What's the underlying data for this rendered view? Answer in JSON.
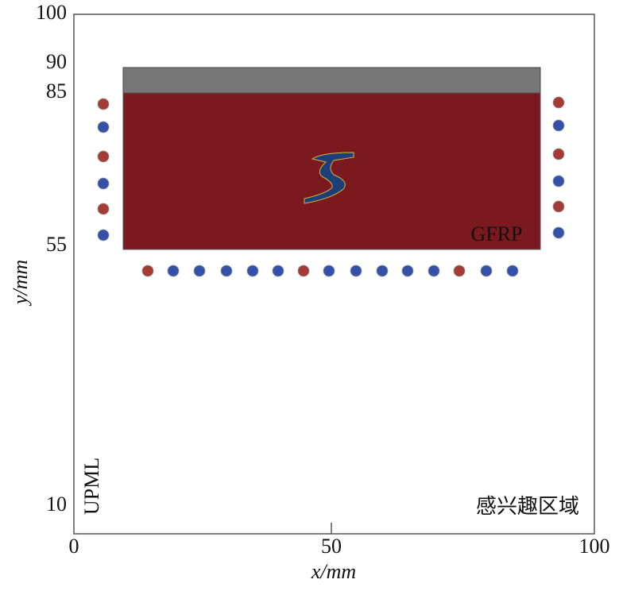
{
  "axes": {
    "xlabel": "x/mm",
    "ylabel": "y/mm",
    "xticks": [
      0,
      50,
      100
    ],
    "yticks": [
      10,
      55,
      85,
      90,
      100
    ]
  },
  "regions": {
    "material": "GFRP",
    "boundary": "UPML",
    "roi": "感兴趣区域"
  }
}
